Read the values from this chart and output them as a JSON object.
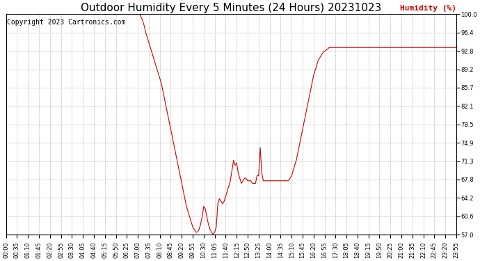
{
  "title": "Outdoor Humidity Every 5 Minutes (24 Hours) 20231023",
  "copyright_text": "Copyright 2023 Cartronics.com",
  "ylabel": "Humidity (%)",
  "ylabel_color": "#cc0000",
  "line_color": "#cc0000",
  "background_color": "#ffffff",
  "grid_color": "#aaaaaa",
  "title_fontsize": 11,
  "ylabel_fontsize": 8,
  "copyright_fontsize": 7,
  "tick_fontsize": 6,
  "ylim": [
    57.0,
    100.0
  ],
  "yticks": [
    57.0,
    60.6,
    64.2,
    67.8,
    71.3,
    74.9,
    78.5,
    82.1,
    85.7,
    89.2,
    92.8,
    96.4,
    100.0
  ],
  "xtick_every": 7,
  "humidity_values": [
    100.0,
    100.0,
    100.0,
    100.0,
    100.0,
    100.0,
    100.0,
    100.0,
    100.0,
    100.0,
    100.0,
    100.0,
    100.0,
    100.0,
    100.0,
    100.0,
    100.0,
    100.0,
    100.0,
    100.0,
    100.0,
    100.0,
    100.0,
    100.0,
    100.0,
    100.0,
    100.0,
    100.0,
    100.0,
    100.0,
    100.0,
    100.0,
    100.0,
    100.0,
    100.0,
    100.0,
    100.0,
    100.0,
    100.0,
    100.0,
    100.0,
    100.0,
    100.0,
    100.0,
    100.0,
    100.0,
    100.0,
    100.0,
    100.0,
    100.0,
    100.0,
    100.0,
    100.0,
    100.0,
    100.0,
    100.0,
    100.0,
    100.0,
    100.0,
    100.0,
    100.0,
    100.0,
    100.0,
    100.0,
    100.0,
    100.0,
    100.0,
    100.0,
    100.0,
    100.0,
    100.0,
    100.0,
    100.0,
    100.0,
    100.0,
    100.0,
    100.0,
    100.0,
    100.0,
    100.0,
    100.0,
    100.0,
    100.0,
    100.0,
    100.0,
    100.0,
    99.5,
    98.8,
    97.8,
    96.5,
    95.5,
    94.5,
    93.5,
    92.5,
    91.5,
    90.5,
    89.5,
    88.5,
    87.5,
    86.5,
    85.0,
    83.5,
    82.0,
    80.5,
    79.0,
    77.5,
    76.0,
    74.5,
    73.0,
    71.5,
    70.0,
    68.5,
    67.0,
    65.5,
    64.0,
    62.5,
    61.5,
    60.5,
    59.5,
    58.5,
    58.0,
    57.5,
    57.5,
    58.0,
    59.0,
    60.5,
    62.5,
    62.0,
    60.5,
    59.0,
    58.0,
    57.5,
    57.0,
    57.5,
    58.5,
    63.0,
    64.0,
    63.5,
    63.0,
    63.5,
    64.5,
    65.5,
    66.5,
    67.5,
    69.5,
    71.5,
    70.5,
    71.0,
    69.0,
    68.0,
    67.0,
    67.5,
    68.0,
    68.0,
    67.5,
    67.5,
    67.5,
    67.0,
    67.0,
    67.0,
    68.5,
    68.5,
    74.0,
    69.0,
    67.5,
    67.5,
    67.5,
    67.5,
    67.5,
    67.5,
    67.5,
    67.5,
    67.5,
    67.5,
    67.5,
    67.5,
    67.5,
    67.5,
    67.5,
    67.5,
    67.5,
    68.0,
    68.5,
    69.5,
    70.5,
    71.5,
    73.0,
    74.5,
    76.0,
    77.5,
    79.0,
    80.5,
    82.0,
    83.5,
    85.0,
    86.5,
    88.0,
    89.0,
    90.0,
    91.0,
    91.5,
    92.0,
    92.5,
    92.8,
    93.0,
    93.2,
    93.5,
    93.5,
    93.5,
    93.5,
    93.5,
    93.5,
    93.5,
    93.5,
    93.5,
    93.5,
    93.5,
    93.5,
    93.5,
    93.5,
    93.5,
    93.5,
    93.5,
    93.5,
    93.5,
    93.5,
    93.5,
    93.5,
    93.5,
    93.5,
    93.5,
    93.5,
    93.5,
    93.5,
    93.5,
    93.5,
    93.5,
    93.5,
    93.5,
    93.5,
    93.5,
    93.5,
    93.5,
    93.5,
    93.5,
    93.5,
    93.5,
    93.5,
    93.5,
    93.5,
    93.5,
    93.5,
    93.5,
    93.5,
    93.5,
    93.5,
    93.5,
    93.5,
    93.5,
    93.5,
    93.5,
    93.5,
    93.5,
    93.5,
    93.5,
    93.5,
    93.5,
    93.5,
    93.5,
    93.5,
    93.5,
    93.5,
    93.5,
    93.5,
    93.5,
    93.5,
    93.5,
    93.5,
    93.5,
    93.5,
    93.5,
    93.5,
    93.5,
    93.5,
    93.5,
    93.5,
    93.5,
    93.5
  ]
}
